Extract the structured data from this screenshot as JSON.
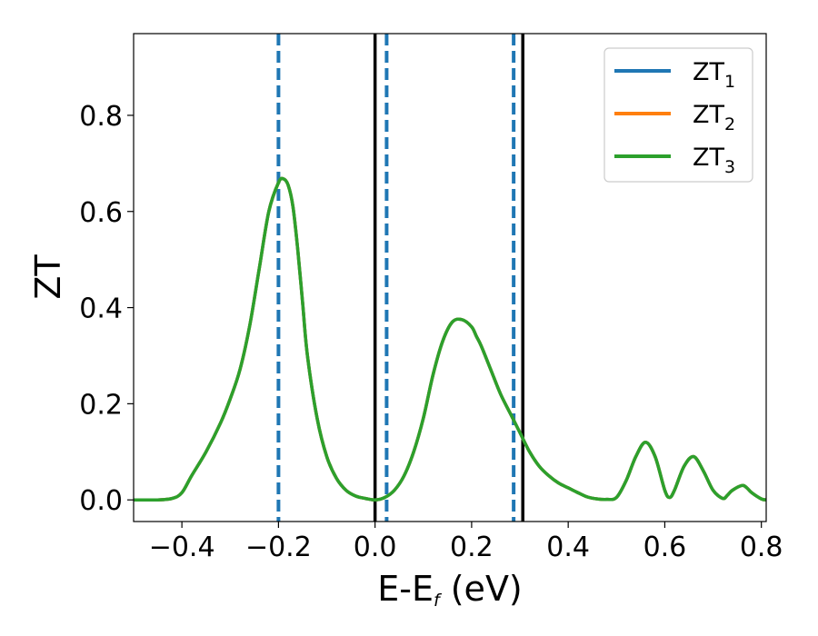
{
  "chart_data": {
    "type": "line",
    "title": "",
    "xlabel": {
      "main": "E-E",
      "sub": "f",
      "suffix": " (eV)"
    },
    "ylabel": "ZT",
    "xlim": [
      -0.5,
      0.81
    ],
    "ylim": [
      -0.045,
      0.97
    ],
    "xticks": [
      -0.4,
      -0.2,
      0.0,
      0.2,
      0.4,
      0.6,
      0.8
    ],
    "xtick_labels": [
      "−0.4",
      "−0.2",
      "0.0",
      "0.2",
      "0.4",
      "0.6",
      "0.8"
    ],
    "yticks": [
      0.0,
      0.2,
      0.4,
      0.6,
      0.8
    ],
    "ytick_labels": [
      "0.0",
      "0.2",
      "0.4",
      "0.6",
      "0.8"
    ],
    "grid": false,
    "legend_position": "top-right",
    "vlines": [
      {
        "x": -0.2,
        "style": "dashed",
        "color": "#1f77b4"
      },
      {
        "x": 0.024,
        "style": "dashed",
        "color": "#1f77b4"
      },
      {
        "x": 0.287,
        "style": "dashed",
        "color": "#1f77b4"
      },
      {
        "x": 0.0,
        "style": "solid",
        "color": "#000000"
      },
      {
        "x": 0.306,
        "style": "solid",
        "color": "#000000"
      }
    ],
    "x": [
      -0.5,
      -0.45,
      -0.42,
      -0.4,
      -0.38,
      -0.35,
      -0.32,
      -0.3,
      -0.28,
      -0.26,
      -0.24,
      -0.22,
      -0.2,
      -0.19,
      -0.18,
      -0.17,
      -0.16,
      -0.15,
      -0.14,
      -0.12,
      -0.1,
      -0.08,
      -0.06,
      -0.04,
      -0.02,
      0.0,
      0.02,
      0.04,
      0.06,
      0.08,
      0.1,
      0.12,
      0.14,
      0.16,
      0.18,
      0.2,
      0.21,
      0.22,
      0.24,
      0.26,
      0.28,
      0.3,
      0.32,
      0.34,
      0.36,
      0.38,
      0.4,
      0.42,
      0.44,
      0.46,
      0.48,
      0.5,
      0.52,
      0.54,
      0.56,
      0.58,
      0.6,
      0.61,
      0.62,
      0.64,
      0.66,
      0.68,
      0.7,
      0.72,
      0.73,
      0.74,
      0.76,
      0.77,
      0.78,
      0.8,
      0.81
    ],
    "series": [
      {
        "name": "ZT1",
        "label_main": "ZT",
        "label_sub": "1",
        "color": "#1f77b4",
        "values": [
          0.0,
          0.0,
          0.003,
          0.015,
          0.05,
          0.1,
          0.16,
          0.21,
          0.27,
          0.36,
          0.48,
          0.6,
          0.66,
          0.668,
          0.655,
          0.61,
          0.52,
          0.41,
          0.3,
          0.17,
          0.09,
          0.045,
          0.02,
          0.008,
          0.003,
          0.0,
          0.005,
          0.02,
          0.05,
          0.1,
          0.17,
          0.26,
          0.33,
          0.37,
          0.375,
          0.36,
          0.34,
          0.32,
          0.27,
          0.22,
          0.18,
          0.14,
          0.1,
          0.07,
          0.05,
          0.035,
          0.025,
          0.015,
          0.006,
          0.002,
          0.001,
          0.005,
          0.04,
          0.09,
          0.12,
          0.09,
          0.02,
          0.005,
          0.02,
          0.07,
          0.09,
          0.06,
          0.02,
          0.003,
          0.01,
          0.02,
          0.03,
          0.025,
          0.015,
          0.002,
          0.0
        ]
      },
      {
        "name": "ZT2",
        "label_main": "ZT",
        "label_sub": "2",
        "color": "#ff7f0e",
        "values": [
          0.0,
          0.0,
          0.003,
          0.015,
          0.05,
          0.1,
          0.16,
          0.21,
          0.27,
          0.36,
          0.48,
          0.6,
          0.66,
          0.668,
          0.655,
          0.61,
          0.52,
          0.41,
          0.3,
          0.17,
          0.09,
          0.045,
          0.02,
          0.008,
          0.003,
          0.0,
          0.005,
          0.02,
          0.05,
          0.1,
          0.17,
          0.26,
          0.33,
          0.37,
          0.375,
          0.36,
          0.34,
          0.32,
          0.27,
          0.22,
          0.18,
          0.14,
          0.1,
          0.07,
          0.05,
          0.035,
          0.025,
          0.015,
          0.006,
          0.002,
          0.001,
          0.005,
          0.04,
          0.09,
          0.12,
          0.09,
          0.02,
          0.005,
          0.02,
          0.07,
          0.09,
          0.06,
          0.02,
          0.003,
          0.01,
          0.02,
          0.03,
          0.025,
          0.015,
          0.002,
          0.0
        ]
      },
      {
        "name": "ZT3",
        "label_main": "ZT",
        "label_sub": "3",
        "color": "#2ca02c",
        "values": [
          0.0,
          0.0,
          0.003,
          0.015,
          0.05,
          0.1,
          0.16,
          0.21,
          0.27,
          0.36,
          0.48,
          0.6,
          0.66,
          0.668,
          0.655,
          0.61,
          0.52,
          0.41,
          0.3,
          0.17,
          0.09,
          0.045,
          0.02,
          0.008,
          0.003,
          0.0,
          0.005,
          0.02,
          0.05,
          0.1,
          0.17,
          0.26,
          0.33,
          0.37,
          0.375,
          0.36,
          0.34,
          0.32,
          0.27,
          0.22,
          0.18,
          0.14,
          0.1,
          0.07,
          0.05,
          0.035,
          0.025,
          0.015,
          0.006,
          0.002,
          0.001,
          0.005,
          0.04,
          0.09,
          0.12,
          0.09,
          0.02,
          0.005,
          0.02,
          0.07,
          0.09,
          0.06,
          0.02,
          0.003,
          0.01,
          0.02,
          0.03,
          0.025,
          0.015,
          0.002,
          0.0
        ]
      }
    ]
  }
}
